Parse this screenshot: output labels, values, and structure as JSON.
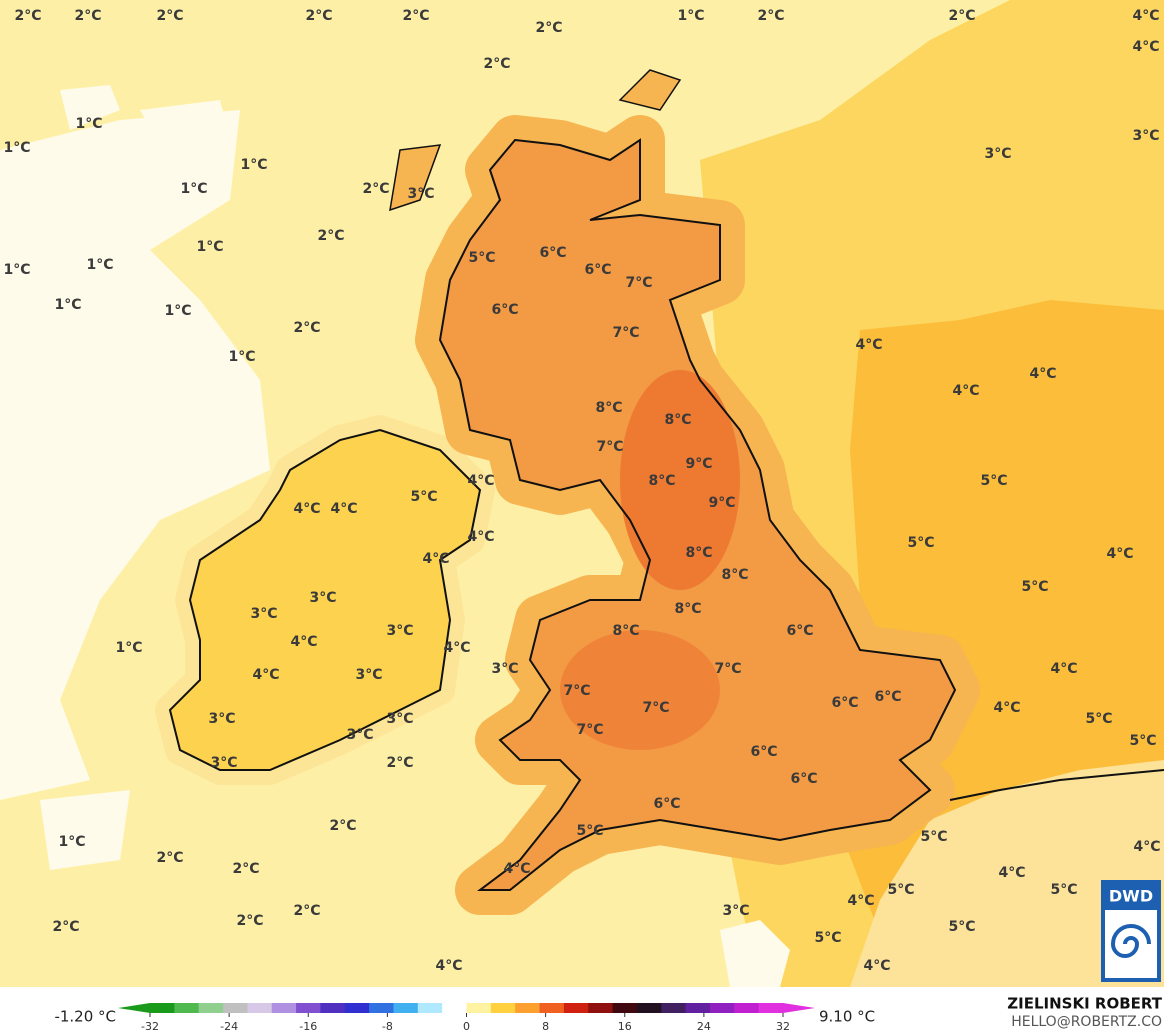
{
  "map_labels": [
    "2°C",
    "2°C",
    "2°C",
    "2°C",
    "2°C",
    "2°C",
    "1°C",
    "2°C",
    "2°C",
    "4°C",
    "4°C",
    "2°C",
    "1°C",
    "1°C",
    "3°C",
    "3°C",
    "1°C",
    "1°C",
    "2°C",
    "3°C",
    "2°C",
    "1°C",
    "1°C",
    "1°C",
    "1°C",
    "1°C",
    "2°C",
    "1°C",
    "5°C",
    "6°C",
    "6°C",
    "7°C",
    "6°C",
    "7°C",
    "4°C",
    "4°C",
    "4°C",
    "8°C",
    "8°C",
    "7°C",
    "9°C",
    "8°C",
    "4°C",
    "5°C",
    "9°C",
    "4°C",
    "4°C",
    "5°C",
    "4°C",
    "5°C",
    "4°C",
    "8°C",
    "4°C",
    "8°C",
    "5°C",
    "3°C",
    "8°C",
    "3°C",
    "8°C",
    "6°C",
    "3°C",
    "4°C",
    "1°C",
    "4°C",
    "7°C",
    "3°C",
    "4°C",
    "3°C",
    "4°C",
    "7°C",
    "6°C",
    "6°C",
    "4°C",
    "5°C",
    "3°C",
    "7°C",
    "3°C",
    "7°C",
    "3°C",
    "5°C",
    "6°C",
    "3°C",
    "2°C",
    "6°C",
    "6°C",
    "2°C",
    "5°C",
    "5°C",
    "1°C",
    "4°C",
    "2°C",
    "2°C",
    "4°C",
    "4°C",
    "5°C",
    "5°C",
    "2°C",
    "3°C",
    "4°C",
    "2°C",
    "2°C",
    "5°C",
    "5°C",
    "4°C",
    "4°C"
  ],
  "colorbar": {
    "min_label": "-1.20 °C",
    "max_label": "9.10 °C",
    "ticks": [
      -32,
      -24,
      -16,
      -8,
      0,
      8,
      16,
      24,
      32
    ]
  },
  "credits": {
    "author": "ZIELINSKI ROBERT",
    "email": "HELLO@ROBERTZ.CO",
    "logo": "DWD"
  }
}
